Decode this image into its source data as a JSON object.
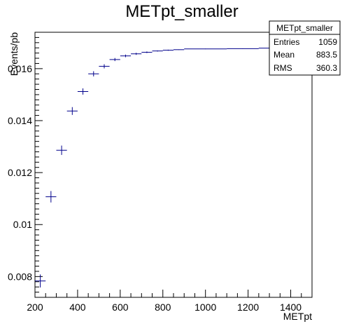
{
  "chart_data": {
    "type": "scatter",
    "title": "METpt_smaller",
    "xlabel": "METpt",
    "ylabel": "Events/pb",
    "xlim": [
      200,
      1500
    ],
    "ylim": [
      0.0072,
      0.0174
    ],
    "xticks": [
      200,
      400,
      600,
      800,
      1000,
      1200,
      1400
    ],
    "xtick_labels": [
      "200",
      "400",
      "600",
      "800",
      "1000",
      "1200",
      "1400"
    ],
    "yticks": [
      0.008,
      0.01,
      0.012,
      0.014,
      0.016
    ],
    "ytick_labels": [
      "0.008",
      "0.01",
      "0.012",
      "0.014",
      "0.016"
    ],
    "marker_color": "#00008b",
    "series": [
      {
        "points": [
          {
            "x": 225,
            "xerr": 25,
            "y": 0.00783,
            "yerr": 0.00025
          },
          {
            "x": 275,
            "xerr": 25,
            "y": 0.01107,
            "yerr": 0.00022
          },
          {
            "x": 325,
            "xerr": 25,
            "y": 0.01286,
            "yerr": 0.00018
          },
          {
            "x": 375,
            "xerr": 25,
            "y": 0.01437,
            "yerr": 0.00015
          },
          {
            "x": 425,
            "xerr": 25,
            "y": 0.01512,
            "yerr": 0.00012
          },
          {
            "x": 475,
            "xerr": 25,
            "y": 0.0158,
            "yerr": 0.0001
          },
          {
            "x": 525,
            "xerr": 25,
            "y": 0.01609,
            "yerr": 8e-05
          },
          {
            "x": 575,
            "xerr": 25,
            "y": 0.01635,
            "yerr": 6e-05
          },
          {
            "x": 625,
            "xerr": 25,
            "y": 0.01649,
            "yerr": 5e-05
          },
          {
            "x": 675,
            "xerr": 25,
            "y": 0.01657,
            "yerr": 4e-05
          },
          {
            "x": 725,
            "xerr": 25,
            "y": 0.01663,
            "yerr": 3e-05
          },
          {
            "x": 775,
            "xerr": 25,
            "y": 0.01668,
            "yerr": 2e-05
          },
          {
            "x": 825,
            "xerr": 25,
            "y": 0.01671,
            "yerr": 2e-05
          },
          {
            "x": 875,
            "xerr": 25,
            "y": 0.01673,
            "yerr": 1e-05
          },
          {
            "x": 1000,
            "xerr": 100,
            "y": 0.01676,
            "yerr": 1e-05
          },
          {
            "x": 1175,
            "xerr": 75,
            "y": 0.01677,
            "yerr": 1e-05
          },
          {
            "x": 1325,
            "xerr": 75,
            "y": 0.01679,
            "yerr": 1e-05
          }
        ]
      }
    ],
    "grid": false,
    "legend": "none"
  },
  "stats": {
    "title": "METpt_smaller",
    "rows": [
      {
        "label": "Entries",
        "value": "1059"
      },
      {
        "label": "Mean",
        "value": "883.5"
      },
      {
        "label": "RMS",
        "value": "360.3"
      }
    ]
  }
}
